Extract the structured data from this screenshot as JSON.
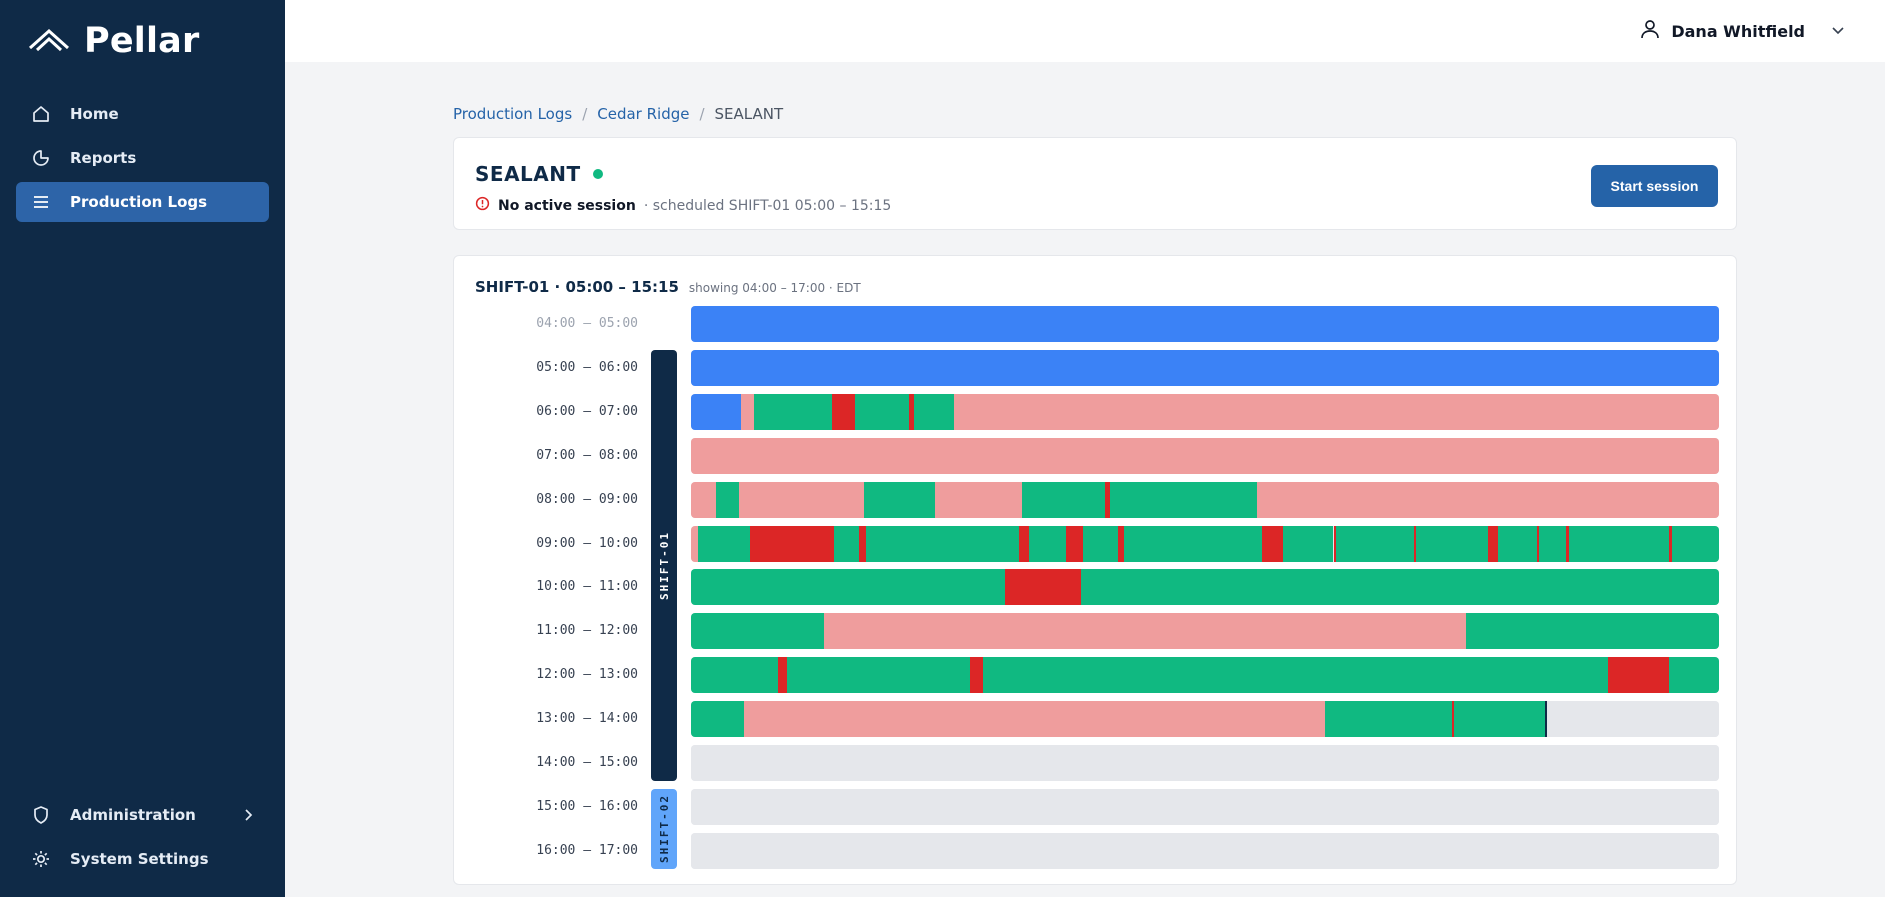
{
  "app": {
    "name": "Pellar"
  },
  "sidebar": {
    "items": [
      {
        "label": "Home",
        "icon": "home-icon"
      },
      {
        "label": "Reports",
        "icon": "pie-icon"
      },
      {
        "label": "Production Logs",
        "icon": "list-icon",
        "active": true
      }
    ],
    "bottom_items": [
      {
        "label": "Administration",
        "icon": "shield-icon"
      },
      {
        "label": "System Settings",
        "icon": "gear-icon"
      }
    ]
  },
  "user": {
    "name": "Dana Whitfield"
  },
  "breadcrumb": {
    "root": "Production Logs",
    "site": "Cedar Ridge",
    "current": "SEALANT",
    "sep": "/"
  },
  "machine": {
    "name": "SEALANT",
    "status_color": "#10b981",
    "session_status": "No active session",
    "schedule_text": "· scheduled SHIFT-01 05:00 – 15:15",
    "start_label": "Start session"
  },
  "timeline": {
    "title": "SHIFT-01 · 05:00 – 15:15",
    "range_text": "showing 04:00 – 17:00 · EDT",
    "colors": {
      "blue": "#3b82f6",
      "pink": "#ef9d9d",
      "green": "#10b981",
      "red": "#dc2626",
      "empty": "#e5e7eb",
      "now": "#0f2a47"
    },
    "shifts": [
      {
        "label": "SHIFT-01",
        "first_row": 1,
        "last_row": 10
      },
      {
        "label": "SHIFT-02",
        "first_row": 11,
        "last_row": 12
      }
    ],
    "rows": [
      {
        "label": "04:00 – 05:00",
        "dim": true,
        "segments": [
          [
            "blue",
            0,
            1
          ]
        ]
      },
      {
        "label": "05:00 – 06:00",
        "segments": [
          [
            "blue",
            0,
            1
          ]
        ]
      },
      {
        "label": "06:00 – 07:00",
        "segments": [
          [
            "blue",
            0,
            0.049
          ],
          [
            "pink",
            0.049,
            0.061
          ],
          [
            "green",
            0.061,
            0.137
          ],
          [
            "red",
            0.137,
            0.16
          ],
          [
            "green",
            0.16,
            0.212
          ],
          [
            "red",
            0.212,
            0.217
          ],
          [
            "green",
            0.217,
            0.256
          ],
          [
            "pink",
            0.256,
            1
          ]
        ]
      },
      {
        "label": "07:00 – 08:00",
        "segments": [
          [
            "pink",
            0,
            1
          ]
        ]
      },
      {
        "label": "08:00 – 09:00",
        "segments": [
          [
            "pink",
            0,
            0.024
          ],
          [
            "green",
            0.024,
            0.047
          ],
          [
            "pink",
            0.047,
            0.168
          ],
          [
            "green",
            0.168,
            0.237
          ],
          [
            "pink",
            0.237,
            0.322
          ],
          [
            "green",
            0.322,
            0.403
          ],
          [
            "red",
            0.403,
            0.408
          ],
          [
            "green",
            0.408,
            0.551
          ],
          [
            "pink",
            0.551,
            1
          ]
        ]
      },
      {
        "label": "09:00 – 10:00",
        "segments": [
          [
            "pink",
            0,
            0.007
          ],
          [
            "green",
            0.007,
            0.057
          ],
          [
            "red",
            0.057,
            0.139
          ],
          [
            "green",
            0.139,
            0.163
          ],
          [
            "red",
            0.163,
            0.17
          ],
          [
            "green",
            0.17,
            0.319
          ],
          [
            "red",
            0.319,
            0.329
          ],
          [
            "green",
            0.329,
            0.365
          ],
          [
            "red",
            0.365,
            0.381
          ],
          [
            "green",
            0.381,
            0.415
          ],
          [
            "red",
            0.415,
            0.421
          ],
          [
            "green",
            0.421,
            0.555
          ],
          [
            "red",
            0.555,
            0.576
          ],
          [
            "green",
            0.576,
            0.625
          ],
          [
            "red",
            0.625,
            0.627
          ],
          [
            "green",
            0.627,
            0.703
          ],
          [
            "red",
            0.703,
            0.705
          ],
          [
            "green",
            0.705,
            0.775
          ],
          [
            "red",
            0.775,
            0.785
          ],
          [
            "green",
            0.785,
            0.823
          ],
          [
            "red",
            0.823,
            0.825
          ],
          [
            "green",
            0.825,
            0.851
          ],
          [
            "red",
            0.851,
            0.854
          ],
          [
            "green",
            0.854,
            0.951
          ],
          [
            "red",
            0.951,
            0.954
          ],
          [
            "green",
            0.954,
            1
          ]
        ]
      },
      {
        "label": "10:00 – 11:00",
        "segments": [
          [
            "green",
            0,
            0.305
          ],
          [
            "red",
            0.305,
            0.379
          ],
          [
            "green",
            0.379,
            1
          ]
        ]
      },
      {
        "label": "11:00 – 12:00",
        "segments": [
          [
            "green",
            0,
            0.129
          ],
          [
            "pink",
            0.129,
            0.754
          ],
          [
            "green",
            0.754,
            1
          ]
        ]
      },
      {
        "label": "12:00 – 13:00",
        "segments": [
          [
            "green",
            0,
            0.085
          ],
          [
            "red",
            0.085,
            0.093
          ],
          [
            "green",
            0.093,
            0.271
          ],
          [
            "red",
            0.271,
            0.284
          ],
          [
            "green",
            0.284,
            0.892
          ],
          [
            "red",
            0.892,
            0.951
          ],
          [
            "green",
            0.951,
            1
          ]
        ]
      },
      {
        "label": "13:00 – 14:00",
        "segments": [
          [
            "green",
            0,
            0.052
          ],
          [
            "pink",
            0.052,
            0.617
          ],
          [
            "green",
            0.617,
            0.74
          ],
          [
            "red",
            0.74,
            0.742
          ],
          [
            "green",
            0.742,
            0.831
          ],
          [
            "now",
            0.831,
            0.833
          ],
          [
            "empty",
            0.833,
            1
          ]
        ]
      },
      {
        "label": "14:00 – 15:00",
        "segments": [
          [
            "empty",
            0,
            1
          ]
        ]
      },
      {
        "label": "15:00 – 16:00",
        "segments": [
          [
            "empty",
            0,
            1
          ]
        ]
      },
      {
        "label": "16:00 – 17:00",
        "segments": [
          [
            "empty",
            0,
            1
          ]
        ]
      }
    ]
  }
}
